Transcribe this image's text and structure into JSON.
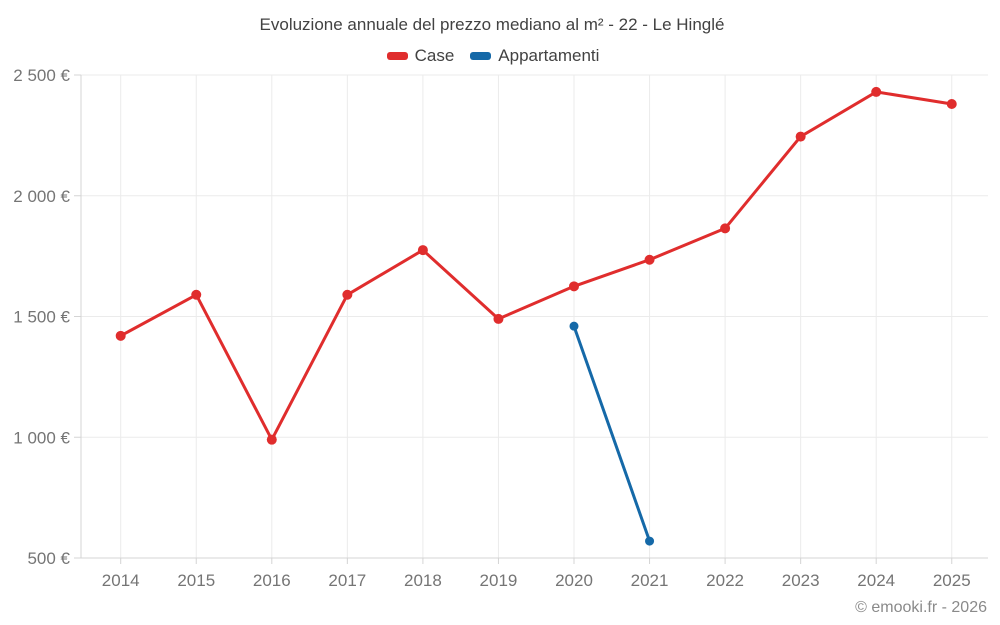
{
  "title": "Evoluzione annuale del prezzo mediano al m² - 22 - Le Hinglé",
  "legend": {
    "items": [
      {
        "label": "Case",
        "color": "#e02d2d"
      },
      {
        "label": "Appartamenti",
        "color": "#1569a8"
      }
    ]
  },
  "footer": {
    "copyright": "© emooki.fr - 2026"
  },
  "colors": {
    "case_series": "#e02d2d",
    "appartamenti_series": "#1569a8",
    "title_text": "#424242",
    "axis_text": "#757575",
    "grid": "#ebebeb",
    "axis_line": "#d4d4d4",
    "footer_text": "#8a8a8a",
    "background": "#ffffff"
  },
  "chart_data": {
    "type": "line",
    "title": "Evoluzione annuale del prezzo mediano al m² - 22 - Le Hinglé",
    "x": [
      2014,
      2015,
      2016,
      2017,
      2018,
      2019,
      2020,
      2021,
      2022,
      2023,
      2024,
      2025
    ],
    "x_labels": [
      "2014",
      "2015",
      "2016",
      "2017",
      "2018",
      "2019",
      "2020",
      "2021",
      "2022",
      "2023",
      "2024",
      "2025"
    ],
    "series": [
      {
        "name": "Case",
        "color": "#e02d2d",
        "values": [
          1420,
          1590,
          990,
          1590,
          1775,
          1490,
          1625,
          1735,
          1865,
          2245,
          2430,
          2380
        ]
      },
      {
        "name": "Appartamenti",
        "color": "#1569a8",
        "values": [
          null,
          null,
          null,
          null,
          null,
          null,
          1460,
          570,
          null,
          null,
          null,
          null
        ]
      }
    ],
    "ylabel": "",
    "xlabel": "",
    "ylim": [
      500,
      2500
    ],
    "yticks": [
      500,
      1000,
      1500,
      2000,
      2500
    ],
    "ytick_labels": [
      "500 €",
      "1 000 €",
      "1 500 €",
      "2 000 €",
      "2 500 €"
    ],
    "grid": true,
    "legend_position": "top",
    "currency_suffix": " €"
  }
}
